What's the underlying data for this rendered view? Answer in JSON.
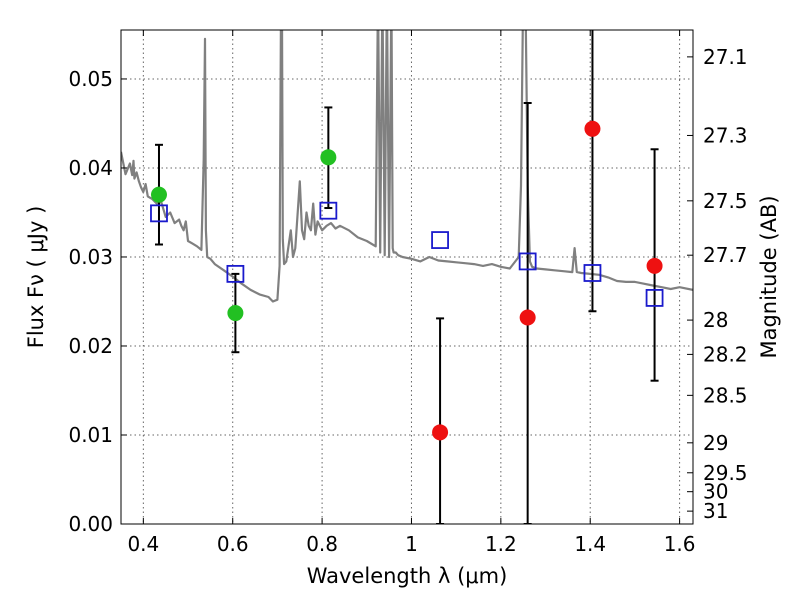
{
  "chart_data": {
    "type": "scatter",
    "xlabel": "Wavelength  λ (μm)",
    "ylabel": "Flux  Fν  ( μJy )",
    "ylabel_right": "Magnitude (AB)",
    "xlim": [
      0.35,
      1.63
    ],
    "ylim": [
      0.0,
      0.0555
    ],
    "x_ticks": [
      0.4,
      0.6,
      0.8,
      1.0,
      1.2,
      1.4,
      1.6
    ],
    "x_tick_labels": [
      "0.4",
      "0.6",
      "0.8",
      "1",
      "1.2",
      "1.4",
      "1.6"
    ],
    "y_ticks": [
      0.0,
      0.01,
      0.02,
      0.03,
      0.04,
      0.05
    ],
    "y_tick_labels": [
      "0.00",
      "0.01",
      "0.02",
      "0.03",
      "0.04",
      "0.05"
    ],
    "right_ticks": [
      {
        "label": "27.1",
        "mag": 27.1
      },
      {
        "label": "27.3",
        "mag": 27.3
      },
      {
        "label": "27.5",
        "mag": 27.5
      },
      {
        "label": "27.7",
        "mag": 27.7
      },
      {
        "label": "28",
        "mag": 28.0
      },
      {
        "label": "28.2",
        "mag": 28.2
      },
      {
        "label": "28.5",
        "mag": 28.5
      },
      {
        "label": "29",
        "mag": 29.0
      },
      {
        "label": "29.5",
        "mag": 29.5
      },
      {
        "label": "30",
        "mag": 30.0
      },
      {
        "label": "31",
        "mag": 31.0
      }
    ],
    "grid": true,
    "colors": {
      "detection": "#22c022",
      "nondetection": "#ee1111",
      "model_box": "#1a1acc",
      "template": "#808080",
      "errorbar": "#000000"
    },
    "detections": [
      {
        "x": 0.435,
        "y": 0.037,
        "ylo": 0.0314,
        "yhi": 0.0426
      },
      {
        "x": 0.606,
        "y": 0.0237,
        "ylo": 0.0193,
        "yhi": 0.0281
      },
      {
        "x": 0.814,
        "y": 0.0412,
        "ylo": 0.0355,
        "yhi": 0.0468
      }
    ],
    "nondetections": [
      {
        "x": 1.064,
        "y": 0.0103,
        "ylo": 0.0,
        "yhi": 0.0231
      },
      {
        "x": 1.26,
        "y": 0.0232,
        "ylo": 0.0,
        "yhi": 0.0473
      },
      {
        "x": 1.405,
        "y": 0.0444,
        "ylo": 0.0239,
        "yhi": 0.0557
      },
      {
        "x": 1.544,
        "y": 0.029,
        "ylo": 0.0161,
        "yhi": 0.0421
      }
    ],
    "model_photometry": [
      {
        "x": 0.435,
        "y": 0.0349
      },
      {
        "x": 0.606,
        "y": 0.0281
      },
      {
        "x": 0.814,
        "y": 0.0352
      },
      {
        "x": 1.064,
        "y": 0.0319
      },
      {
        "x": 1.26,
        "y": 0.0295
      },
      {
        "x": 1.405,
        "y": 0.0282
      },
      {
        "x": 1.544,
        "y": 0.0254
      }
    ],
    "template_spectrum": {
      "x": [
        0.35,
        0.36,
        0.37,
        0.375,
        0.378,
        0.38,
        0.385,
        0.39,
        0.395,
        0.4,
        0.405,
        0.41,
        0.42,
        0.43,
        0.44,
        0.45,
        0.46,
        0.47,
        0.48,
        0.485,
        0.49,
        0.495,
        0.5,
        0.51,
        0.52,
        0.53,
        0.535,
        0.538,
        0.54,
        0.543,
        0.55,
        0.56,
        0.58,
        0.6,
        0.62,
        0.64,
        0.66,
        0.68,
        0.69,
        0.7,
        0.705,
        0.708,
        0.71,
        0.712,
        0.715,
        0.72,
        0.73,
        0.735,
        0.74,
        0.75,
        0.755,
        0.76,
        0.765,
        0.77,
        0.775,
        0.78,
        0.785,
        0.79,
        0.8,
        0.81,
        0.82,
        0.83,
        0.84,
        0.86,
        0.88,
        0.9,
        0.92,
        0.925,
        0.93,
        0.935,
        0.94,
        0.945,
        0.95,
        0.955,
        0.958,
        0.96,
        0.965,
        0.97,
        0.98,
        1.0,
        1.02,
        1.04,
        1.06,
        1.08,
        1.1,
        1.12,
        1.14,
        1.16,
        1.18,
        1.2,
        1.22,
        1.24,
        1.245,
        1.25,
        1.255,
        1.26,
        1.265,
        1.27,
        1.28,
        1.3,
        1.32,
        1.34,
        1.36,
        1.365,
        1.37,
        1.38,
        1.4,
        1.42,
        1.44,
        1.46,
        1.48,
        1.5,
        1.52,
        1.54,
        1.56,
        1.58,
        1.6,
        1.63
      ],
      "y": [
        0.0418,
        0.0393,
        0.0405,
        0.0392,
        0.0408,
        0.0388,
        0.0395,
        0.0385,
        0.0378,
        0.0373,
        0.0382,
        0.0368,
        0.0365,
        0.036,
        0.0362,
        0.0345,
        0.035,
        0.0338,
        0.0342,
        0.0335,
        0.033,
        0.034,
        0.0318,
        0.0315,
        0.0312,
        0.0308,
        0.041,
        0.0545,
        0.033,
        0.03,
        0.0298,
        0.0292,
        0.0285,
        0.0278,
        0.027,
        0.0263,
        0.0258,
        0.0255,
        0.025,
        0.0252,
        0.029,
        0.058,
        0.06,
        0.032,
        0.0292,
        0.0295,
        0.033,
        0.03,
        0.031,
        0.0385,
        0.033,
        0.032,
        0.035,
        0.0335,
        0.033,
        0.036,
        0.0325,
        0.034,
        0.033,
        0.0335,
        0.0338,
        0.0332,
        0.0335,
        0.033,
        0.0322,
        0.0318,
        0.0312,
        0.06,
        0.0305,
        0.06,
        0.0302,
        0.06,
        0.03,
        0.06,
        0.031,
        0.0305,
        0.0305,
        0.0302,
        0.03,
        0.0298,
        0.0295,
        0.03,
        0.0296,
        0.0295,
        0.0294,
        0.0293,
        0.0292,
        0.029,
        0.0292,
        0.0289,
        0.0287,
        0.03,
        0.038,
        0.06,
        0.06,
        0.038,
        0.0295,
        0.0289,
        0.0287,
        0.0286,
        0.0285,
        0.0284,
        0.0283,
        0.031,
        0.0283,
        0.0282,
        0.0281,
        0.028,
        0.0277,
        0.0273,
        0.0272,
        0.0272,
        0.027,
        0.0268,
        0.0266,
        0.0264,
        0.0266,
        0.0263
      ]
    }
  }
}
